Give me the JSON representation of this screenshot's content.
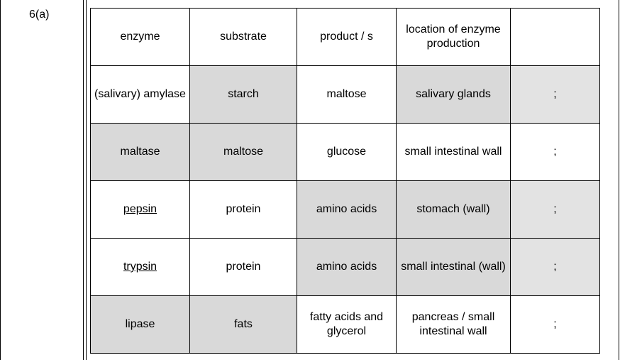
{
  "question": {
    "label": "6(a)"
  },
  "table": {
    "headers": [
      "enzyme",
      "substrate",
      "product / s",
      "location of enzyme production",
      ""
    ],
    "rows": [
      {
        "enzyme": "(salivary) amylase",
        "substrate": "starch",
        "products": "maltose",
        "location": "salivary glands",
        "mark": ";"
      },
      {
        "enzyme": "maltase",
        "substrate": "maltose",
        "products": "glucose",
        "location": "small intestinal wall",
        "mark": ";"
      },
      {
        "enzyme": "pepsin",
        "substrate": "protein",
        "products": "amino acids",
        "location": "stomach (wall)",
        "mark": ";"
      },
      {
        "enzyme": "trypsin",
        "substrate": "protein",
        "products": "amino acids",
        "location": "small intestinal (wall)",
        "mark": ";"
      },
      {
        "enzyme": "lipase",
        "substrate": "fats",
        "products": "fatty acids and glycerol",
        "location": "pancreas / small intestinal wall",
        "mark": ";"
      }
    ]
  }
}
